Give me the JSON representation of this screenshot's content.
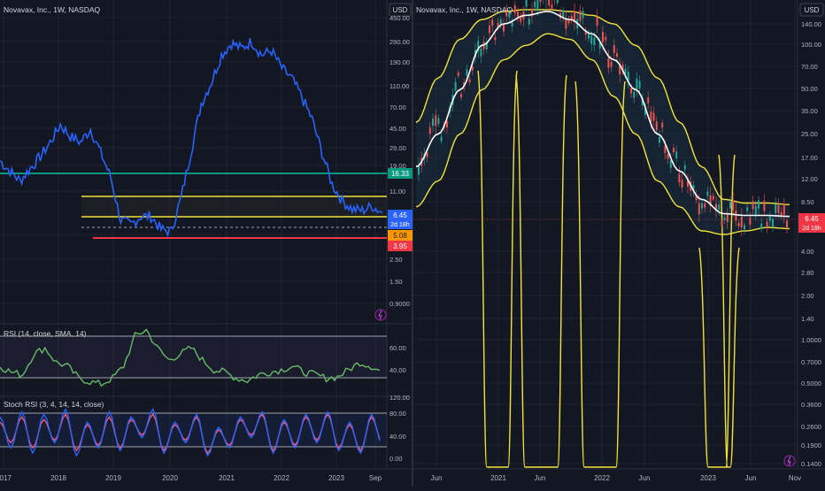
{
  "left": {
    "title": "Novavax, Inc., 1W, NASDAQ",
    "currency": "USD",
    "price_ticks": [
      "450.00",
      "290.00",
      "190.00",
      "110.00",
      "70.00",
      "45.00",
      "29.00",
      "19.00",
      "11.00",
      "5.00",
      "2.50",
      "1.50",
      "0.9000"
    ],
    "x_ticks": [
      "2017",
      "2018",
      "2019",
      "2020",
      "2021",
      "2022",
      "2023",
      "Sep"
    ],
    "labels": {
      "green_level": "16.33",
      "price": "6.45",
      "countdown": "2d 18h",
      "orange_level": "5.08",
      "red_level": "3.95"
    },
    "colors": {
      "price": "#2962ff",
      "green_level": "#089981",
      "yellow_band": "#f2e33a",
      "red_level": "#f23645",
      "orange_level": "#ff9800",
      "rsi": "#66bb6a",
      "stoch_k": "#2962ff",
      "stoch_d": "#ef5a7a"
    },
    "rsi": {
      "legend": "RSI (14, close, SMA, 14)",
      "ticks": [
        "60.00",
        "40.00"
      ]
    },
    "stoch": {
      "legend": "Stoch RSI (3, 4, 14, 14, close)",
      "ticks": [
        "120.00",
        "80.00",
        "40.00",
        "0.00"
      ]
    }
  },
  "right": {
    "title": "Novavax, Inc., 1W, NASDAQ",
    "currency": "USD",
    "price_ticks": [
      "140.00",
      "100.00",
      "70.00",
      "50.00",
      "35.00",
      "25.00",
      "17.00",
      "12.00",
      "8.50",
      "4.00",
      "2.80",
      "2.00",
      "1.40",
      "1.0000",
      "0.7000",
      "0.5000",
      "0.3600",
      "0.2600",
      "0.1900",
      "0.1400"
    ],
    "x_ticks": [
      "Jun",
      "2021",
      "Jun",
      "2022",
      "Jun",
      "2023",
      "Jun",
      "Nov"
    ],
    "labels": {
      "price": "6.45",
      "countdown": "2d 18h"
    },
    "colors": {
      "up": "#26a69a",
      "down": "#ef5350",
      "band": "#f2e33a",
      "mid": "#ffffff"
    }
  },
  "chart_data": [
    {
      "type": "line",
      "title": "Novavax, Inc., 1W, NASDAQ",
      "series": [
        {
          "values": [
            20,
            16,
            13,
            17,
            22,
            30,
            44,
            34,
            30,
            40,
            24,
            14,
            5.5,
            5,
            6,
            6,
            4.5,
            4.3,
            9,
            25,
            70,
            110,
            200,
            260,
            230,
            270,
            200,
            220,
            150,
            120,
            80,
            50,
            24,
            12,
            8.5,
            7,
            6.8,
            7.5,
            6.45
          ]
        }
      ],
      "horizontal_levels": {
        "green": 16.33,
        "yellow_top": 9.5,
        "yellow_bottom": 6.6,
        "orange_dashed": 5.08,
        "red": 3.95
      },
      "yscale": "log"
    },
    {
      "type": "line",
      "title": "RSI (14, close, SMA, 14)",
      "series": [
        {
          "values": [
            45,
            40,
            38,
            55,
            60,
            48,
            45,
            35,
            32,
            30,
            35,
            45,
            70,
            75,
            60,
            50,
            55,
            60,
            50,
            42,
            40,
            35,
            33,
            38,
            40,
            42,
            45,
            40,
            38,
            35,
            36,
            42,
            48,
            45,
            40
          ]
        }
      ],
      "ylim": [
        20,
        80
      ]
    },
    {
      "type": "line",
      "title": "Stoch RSI (3, 4, 14, 14, close)",
      "series": [
        {
          "values": [
            80,
            20,
            90,
            10,
            85,
            30,
            95,
            5,
            70,
            20,
            90,
            15,
            80,
            40,
            95,
            10,
            70,
            30,
            85,
            5,
            60,
            20,
            80,
            40,
            90,
            10,
            75,
            20,
            85,
            30,
            90,
            15,
            70,
            10,
            85,
            25
          ]
        },
        {
          "values": [
            70,
            30,
            80,
            20,
            75,
            35,
            85,
            15,
            65,
            25,
            80,
            20,
            75,
            45,
            85,
            15,
            65,
            35,
            80,
            10,
            55,
            25,
            75,
            45,
            85,
            15,
            70,
            25,
            80,
            35,
            85,
            20,
            65,
            15,
            80,
            30
          ]
        }
      ],
      "ylim": [
        0,
        120
      ]
    },
    {
      "type": "line",
      "title": "Novavax, Inc., 1W, NASDAQ",
      "series": [
        {
          "values": [
            15,
            25,
            50,
            100,
            140,
            160,
            170,
            150,
            120,
            80,
            50,
            25,
            14,
            9,
            7.2,
            7,
            7,
            6.9
          ]
        },
        {
          "values": [
            30,
            60,
            110,
            150,
            170,
            175,
            175,
            170,
            160,
            140,
            100,
            60,
            30,
            15,
            9,
            8.5,
            8.5,
            8.3
          ]
        },
        {
          "values": [
            8,
            12,
            25,
            50,
            80,
            100,
            120,
            110,
            80,
            45,
            25,
            12,
            8,
            5.5,
            5.2,
            5.5,
            5.8,
            5.7
          ]
        }
      ],
      "yscale": "log"
    }
  ]
}
